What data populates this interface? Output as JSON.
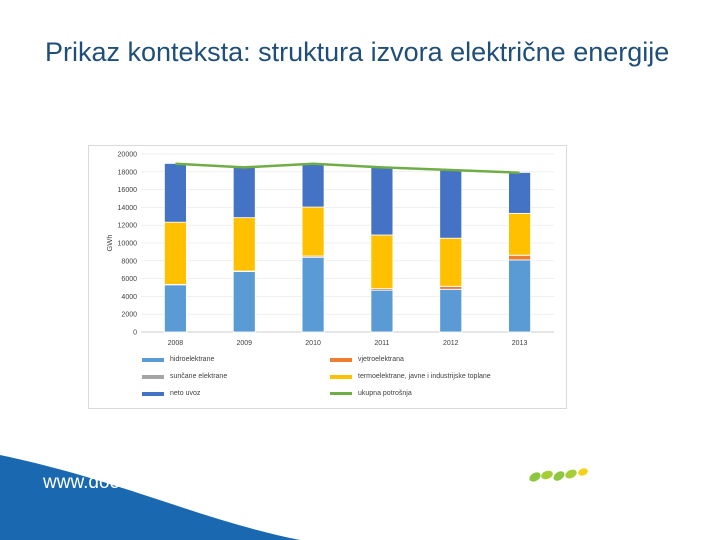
{
  "slide": {
    "title": "Prikaz konteksta: struktura izvora električne energije",
    "footer": "www.door.hr"
  },
  "colors": {
    "hidroelektrane": "#5b9bd5",
    "vjetroelektrana": "#ed7d31",
    "suncane": "#a5a5a5",
    "termo": "#ffc000",
    "uvoz": "#4472c4",
    "potrosnja": "#70ad47",
    "title": "#1f4e79",
    "footer_band": "#1a69b0"
  },
  "chart_data": {
    "type": "bar",
    "stacked": true,
    "ylabel": "GWh",
    "ylim": [
      0,
      20000
    ],
    "yticks": [
      "0",
      "2000",
      "4000",
      "6000",
      "8000",
      "10000",
      "12000",
      "14000",
      "16000",
      "18000",
      "20000"
    ],
    "categories": [
      "2008",
      "2009",
      "2010",
      "2011",
      "2012",
      "2013"
    ],
    "series": [
      {
        "name": "hidroelektrane",
        "key": "hidroelektrane",
        "values": [
          5300,
          6800,
          8400,
          4700,
          4800,
          8100
        ]
      },
      {
        "name": "vjetroelektrana",
        "key": "vjetroelektrana",
        "values": [
          40,
          50,
          140,
          200,
          330,
          520
        ]
      },
      {
        "name": "sunčane elektrane",
        "key": "suncane",
        "values": [
          0,
          0,
          0,
          0,
          10,
          10
        ]
      },
      {
        "name": "termoelektrane, javne i industrijske toplane",
        "key": "termo",
        "values": [
          7000,
          6000,
          5500,
          6000,
          5400,
          4700
        ]
      },
      {
        "name": "neto uvoz",
        "key": "uvoz",
        "values": [
          6600,
          5700,
          4900,
          7600,
          7700,
          4600
        ]
      }
    ],
    "line": {
      "name": "ukupna potrošnja",
      "key": "potrosnja",
      "values": [
        18900,
        18500,
        18900,
        18500,
        18200,
        17900
      ]
    }
  }
}
